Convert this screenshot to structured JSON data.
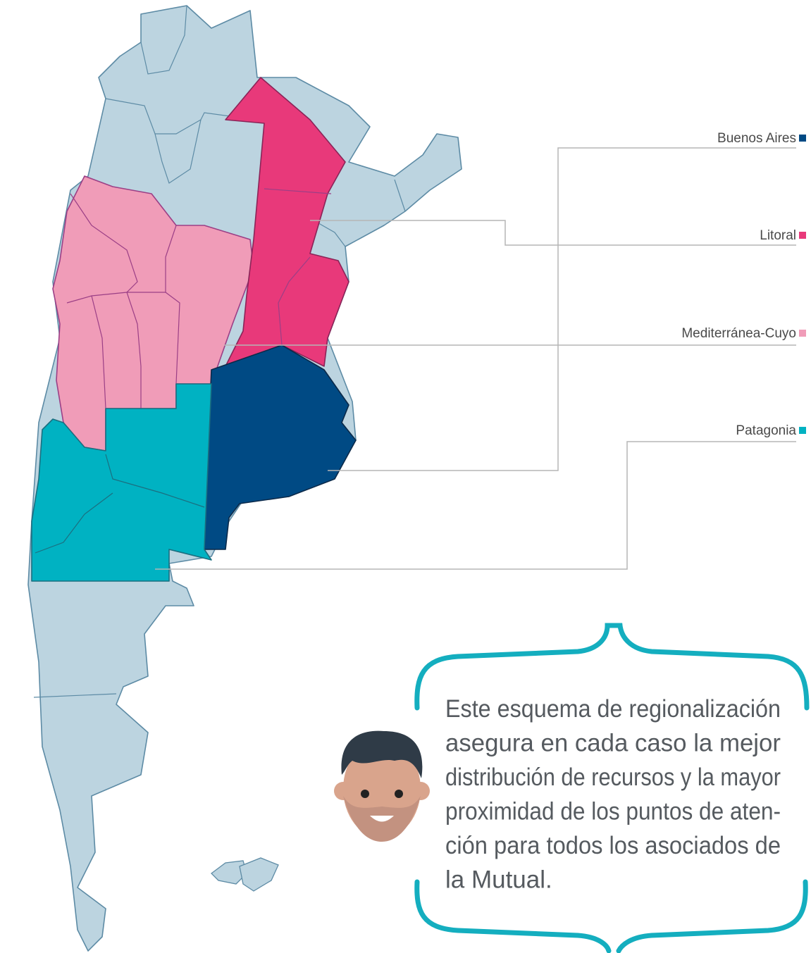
{
  "legend": [
    {
      "label": "Buenos Aires",
      "color": "#004a84"
    },
    {
      "label": "Litoral",
      "color": "#e8397a"
    },
    {
      "label": "Mediterránea-Cuyo",
      "color": "#f09cb8"
    },
    {
      "label": "Patagonia",
      "color": "#00b2c2"
    }
  ],
  "note": {
    "lines": [
      "Este esquema de regionalización",
      "asegura en cada caso la mejor",
      "distribución de recursos y la mayor",
      "proximidad de los puntos de aten-",
      "ción para todos los asociados de",
      "la Mutual."
    ]
  }
}
